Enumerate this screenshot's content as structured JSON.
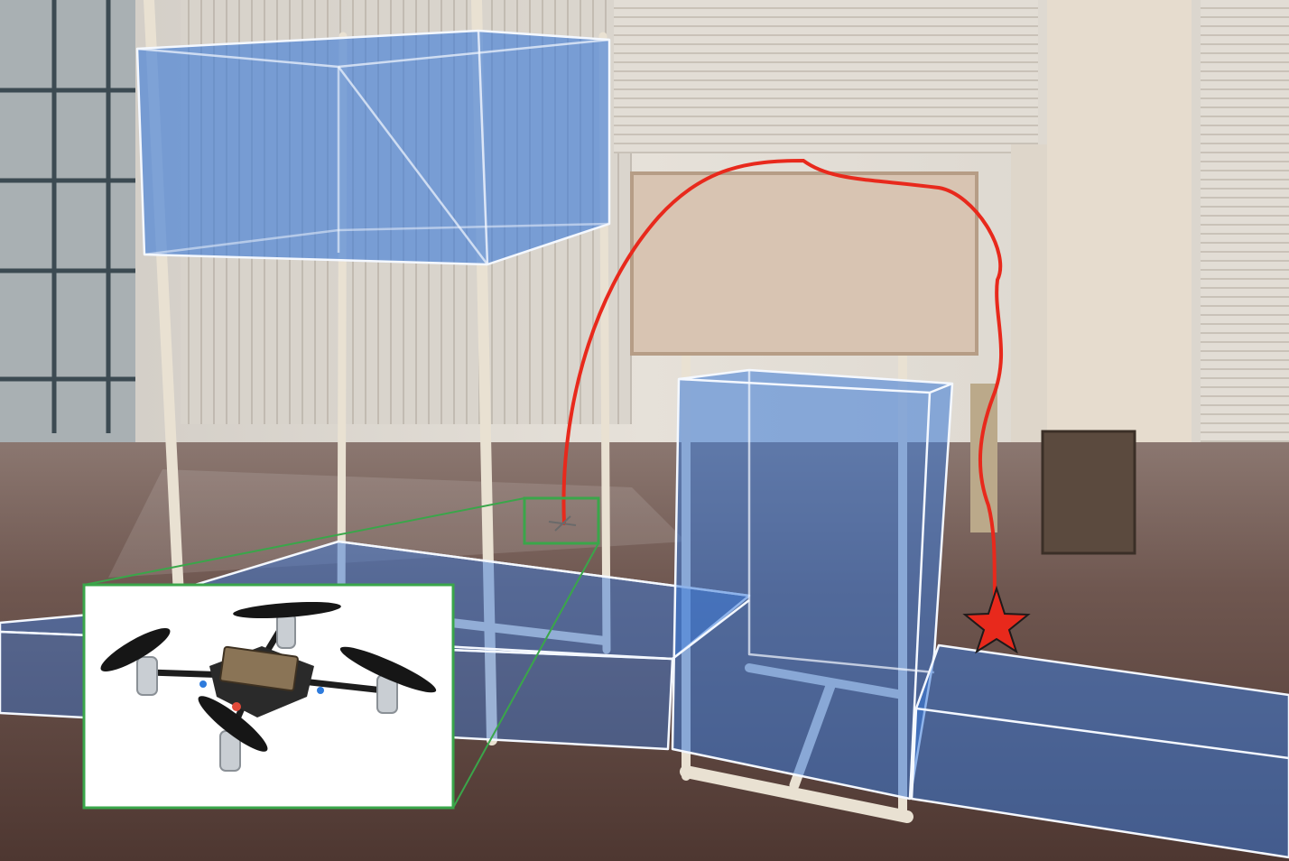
{
  "figure": {
    "kind": "drone obstacle-course trajectory illustration",
    "colors": {
      "obstacle_fill": "#3b7ad9",
      "obstacle_edge": "#f4f8ff",
      "trajectory": "#e8291c",
      "goal_star": "#e8291c",
      "inset_frame": "#3aa64a",
      "floor": "#6b5248",
      "window_light": "#e9e4dc"
    },
    "icons": {
      "goal": "star-icon",
      "drone": "quadcopter-icon"
    }
  }
}
